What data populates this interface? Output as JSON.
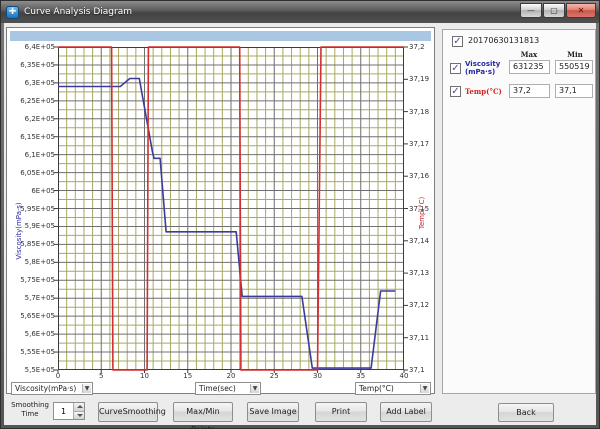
{
  "window": {
    "title": "Curve Analysis Diagram",
    "controls": {
      "minimize": "—",
      "maximize": "▢",
      "close": "✕"
    }
  },
  "chart": {
    "left_axis_title": "Viscosity(mPa·s)",
    "right_axis_title": "Temp(°C)",
    "left_axis_labels": [
      "6,4E+05",
      "6,35E+05",
      "6,3E+05",
      "6,25E+05",
      "6,2E+05",
      "6,15E+05",
      "6,1E+05",
      "6,05E+05",
      "6E+05",
      "5,95E+05",
      "5,9E+05",
      "5,85E+05",
      "5,8E+05",
      "5,75E+05",
      "5,7E+05",
      "5,65E+05",
      "5,6E+05",
      "5,55E+05",
      "5,5E+05"
    ],
    "right_axis_labels": [
      "37,2",
      "37,19",
      "37,18",
      "37,17",
      "37,16",
      "37,15",
      "37,14",
      "37,13",
      "37,12",
      "37,11",
      "37,1"
    ],
    "x_axis_labels": [
      "0",
      "5",
      "10",
      "15",
      "20",
      "25",
      "30",
      "35",
      "40"
    ],
    "dropdowns": {
      "left": "Viscosity(mPa·s)",
      "center": "Time(sec)",
      "right": "Temp(°C)"
    },
    "checkmark": "✓",
    "dropdown_arrow": "▼"
  },
  "chart_data": {
    "type": "line",
    "title": "",
    "xlabel": "Time(sec)",
    "ylabel_left": "Viscosity(mPa·s)",
    "ylabel_right": "Temp(°C)",
    "xlim": [
      0,
      40
    ],
    "ylim_left": [
      550000,
      640000
    ],
    "ylim_right": [
      37.1,
      37.2
    ],
    "x_major_step": 5,
    "x_minor_step": 1,
    "y_major_divisions": 18,
    "grid_major_color": "#6f6f6f",
    "grid_minor_color": "#a8a862",
    "legend_position": "right-panel",
    "series": [
      {
        "name": "Viscosity",
        "axis": "left",
        "color": "#3b3b9e",
        "x": [
          0,
          7.2,
          8.3,
          9.4,
          10.9,
          11.1,
          11.8,
          12.5,
          20.6,
          21.3,
          28.2,
          29.4,
          36.2,
          37.3,
          39.0
        ],
        "y": [
          629000,
          629000,
          631235,
          631235,
          611000,
          609000,
          609000,
          588500,
          588500,
          570500,
          570500,
          550519,
          550519,
          572000,
          572000
        ]
      },
      {
        "name": "Temp",
        "axis": "right",
        "color": "#d03030",
        "x": [
          0,
          6.2,
          6.35,
          10.3,
          10.45,
          21.0,
          21.15,
          30.0,
          30.4,
          40
        ],
        "y": [
          37.2,
          37.2,
          37.1,
          37.1,
          37.2,
          37.2,
          37.1,
          37.1,
          37.2,
          37.2
        ]
      }
    ]
  },
  "legend": {
    "dataset": "20170630131813",
    "columns": {
      "max": "Max",
      "min": "Min"
    },
    "rows": [
      {
        "label_line1": "Viscosity",
        "label_line2": "(mPa·s)",
        "color": "#2929a3",
        "max": "631235",
        "min": "550519"
      },
      {
        "label_line1": "Temp(°C)",
        "label_line2": "",
        "color": "#cc2222",
        "max": "37,2",
        "min": "37,1"
      }
    ]
  },
  "toolbar": {
    "smoothing_label_line1": "Smoothing",
    "smoothing_label_line2": "Time",
    "smoothing_value": "1",
    "buttons": [
      "CurveSmoothing",
      "Max/Min Points",
      "Save Image",
      "Print",
      "Add Label",
      "Back"
    ]
  }
}
